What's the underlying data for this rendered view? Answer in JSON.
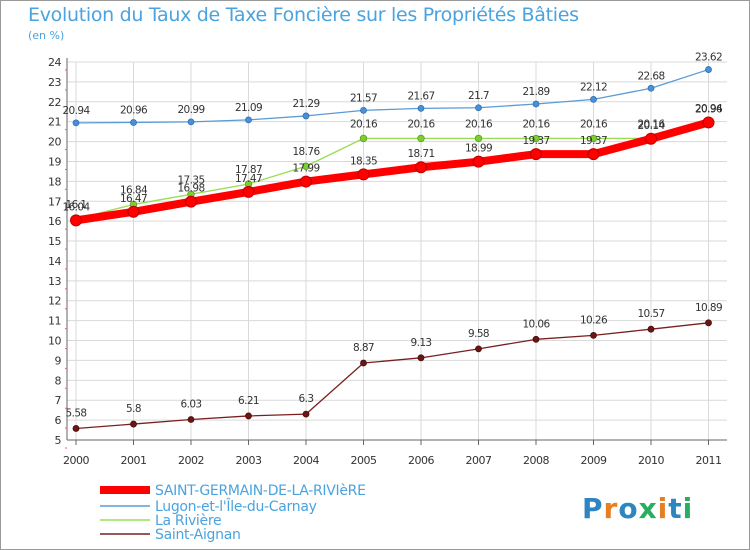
{
  "chart_data": {
    "type": "line",
    "title": "Evolution du Taux de Taxe Foncière sur les Propriétés Bâties",
    "subtitle": "(en %)",
    "x": [
      "2000",
      "2001",
      "2002",
      "2003",
      "2004",
      "2005",
      "2006",
      "2007",
      "2008",
      "2009",
      "2010",
      "2011"
    ],
    "yticks": [
      "5",
      "6",
      "7",
      "8",
      "9",
      "10",
      "11",
      "12",
      "13",
      "14",
      "15",
      "16",
      "17",
      "18",
      "19",
      "20",
      "21",
      "22",
      "23",
      "24"
    ],
    "ylim": [
      5,
      24
    ],
    "grid": true,
    "legend_position": "bottom-left",
    "series": [
      {
        "name": "SAINT-GERMAIN-DE-LA-RIVIèRE",
        "color": "#ff0000",
        "values": [
          16.04,
          16.47,
          16.98,
          17.47,
          17.99,
          18.35,
          18.71,
          18.99,
          19.37,
          19.37,
          20.14,
          20.96
        ],
        "labels": [
          "16.04",
          "16.47",
          "16.98",
          "17.47",
          "17.99",
          "18.35",
          "18.71",
          "18.99",
          "19.37",
          "19.37",
          "20.14",
          "20.96"
        ]
      },
      {
        "name": "Lugon-et-l'Île-du-Carnay",
        "color": "#5b9bd5",
        "values": [
          20.94,
          20.96,
          20.99,
          21.09,
          21.29,
          21.57,
          21.67,
          21.7,
          21.89,
          22.12,
          22.68,
          23.62
        ],
        "labels": [
          "20.94",
          "20.96",
          "20.99",
          "21.09",
          "21.29",
          "21.57",
          "21.67",
          "21.7",
          "21.89",
          "22.12",
          "22.68",
          "23.62"
        ]
      },
      {
        "name": "La Rivière",
        "color": "#99dd55",
        "values": [
          16.1,
          16.84,
          17.35,
          17.87,
          18.76,
          20.16,
          20.16,
          20.16,
          20.16,
          20.16,
          20.16,
          20.94
        ],
        "labels": [
          "16.1",
          "16.84",
          "17.35",
          "17.87",
          "18.76",
          "20.16",
          "20.16",
          "20.16",
          "20.16",
          "20.16",
          "20.16",
          "20.94"
        ]
      },
      {
        "name": "Saint-Aignan",
        "color": "#7a1f1f",
        "values": [
          5.58,
          5.8,
          6.03,
          6.21,
          6.3,
          8.87,
          9.13,
          9.58,
          10.06,
          10.26,
          10.57,
          10.89
        ],
        "labels": [
          "5.58",
          "5.8",
          "6.03",
          "6.21",
          "6.3",
          "8.87",
          "9.13",
          "9.58",
          "10.06",
          "10.26",
          "10.57",
          "10.89"
        ]
      }
    ]
  },
  "logo": {
    "text": "Proxiti",
    "letters": [
      "P",
      "r",
      "o",
      "x",
      "i",
      "t",
      "i"
    ],
    "colors": [
      "#2e86c1",
      "#e67e22",
      "#2e86c1",
      "#27ae60",
      "#e67e22",
      "#2e86c1",
      "#27ae60"
    ]
  }
}
